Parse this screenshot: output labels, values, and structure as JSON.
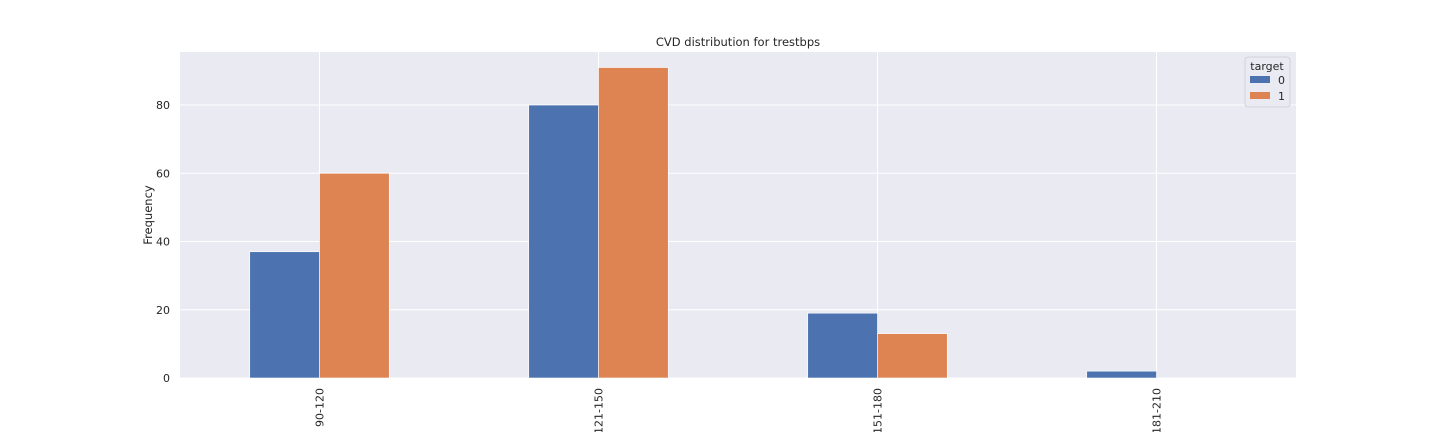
{
  "chart_data": {
    "type": "bar",
    "title": "CVD distribution  for trestbps",
    "xlabel": "",
    "ylabel": "Frequency",
    "categories": [
      "90-120",
      "121-150",
      "151-180",
      "181-210"
    ],
    "series": [
      {
        "name": "0",
        "values": [
          37,
          80,
          19,
          2
        ],
        "color": "#4c72b0"
      },
      {
        "name": "1",
        "values": [
          60,
          91,
          13,
          0
        ],
        "color": "#dd8452"
      }
    ],
    "ylim": [
      0,
      95.55
    ],
    "yticks": [
      0,
      20,
      40,
      60,
      80
    ],
    "legend": {
      "title": "target",
      "placement": "top-right"
    },
    "grid": true,
    "background_color": "#eaeaf2",
    "grid_color": "#ffffff"
  }
}
